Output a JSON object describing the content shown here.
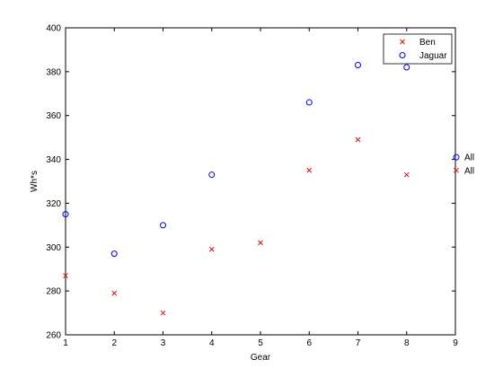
{
  "chart_data": {
    "type": "scatter",
    "title": "",
    "xlabel": "Gear",
    "ylabel": "Wh*s",
    "xlim": [
      1,
      9
    ],
    "ylim": [
      260,
      400
    ],
    "xticks": [
      1,
      2,
      3,
      4,
      5,
      6,
      7,
      8,
      9
    ],
    "yticks": [
      260,
      280,
      300,
      320,
      340,
      360,
      380,
      400
    ],
    "grid": false,
    "legend_position": "top-right",
    "series": [
      {
        "name": "Ben",
        "marker": "x",
        "color": "#d01010",
        "points": [
          [
            1,
            287
          ],
          [
            2,
            279
          ],
          [
            3,
            270
          ],
          [
            4,
            299
          ],
          [
            5,
            302
          ],
          [
            6,
            335
          ],
          [
            7,
            349
          ],
          [
            8,
            333
          ]
        ]
      },
      {
        "name": "Jaguar",
        "marker": "o",
        "color": "#0000ee",
        "points": [
          [
            1,
            315
          ],
          [
            2,
            297
          ],
          [
            3,
            310
          ],
          [
            4,
            333
          ],
          [
            6,
            366
          ],
          [
            7,
            383
          ],
          [
            8,
            382
          ]
        ]
      }
    ],
    "side_labels": [
      {
        "label": "All",
        "marker": "o",
        "color": "#0000ee",
        "y": 341
      },
      {
        "label": "All",
        "marker": "x",
        "color": "#d01010",
        "y": 335
      }
    ]
  }
}
